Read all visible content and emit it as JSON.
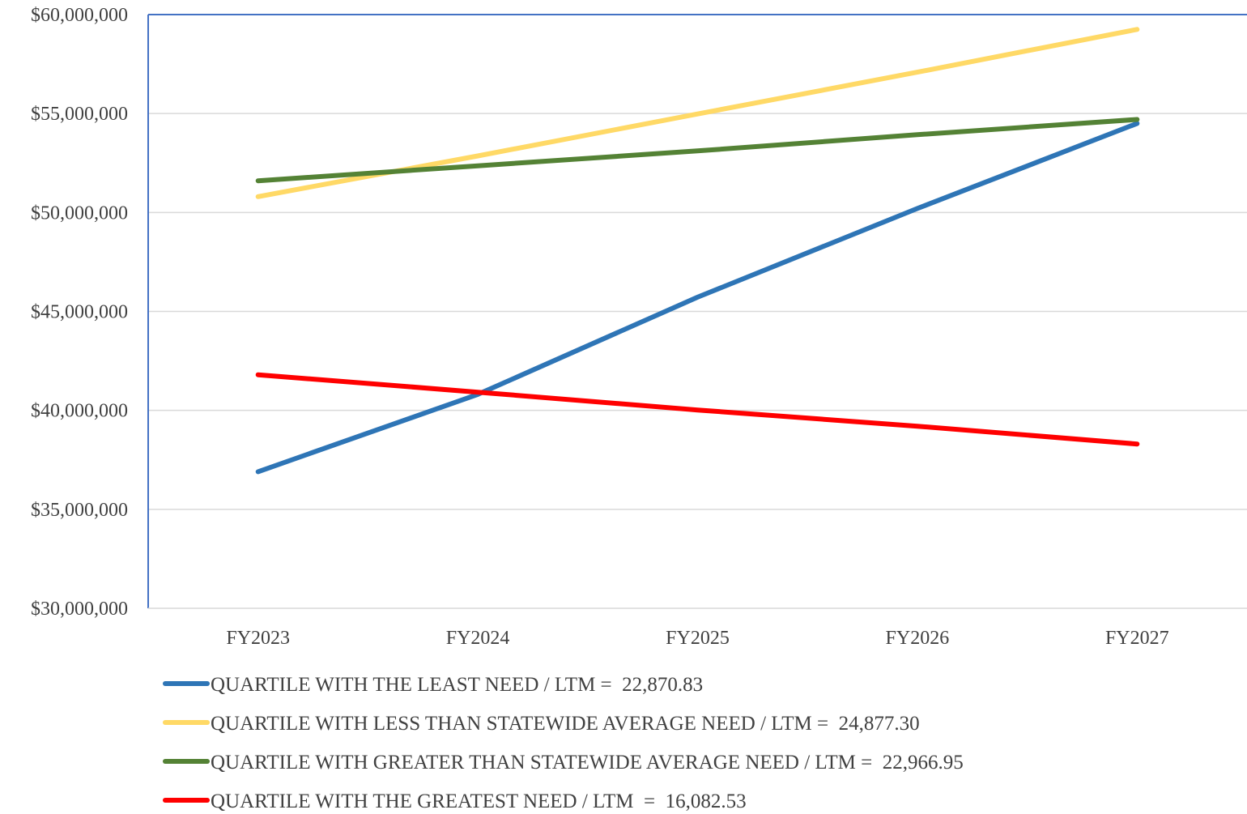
{
  "chart_data": {
    "type": "line",
    "title": "",
    "xlabel": "",
    "ylabel": "",
    "categories": [
      "FY2023",
      "FY2024",
      "FY2025",
      "FY2026",
      "FY2027"
    ],
    "y_ticks": [
      30000000,
      35000000,
      40000000,
      45000000,
      50000000,
      55000000,
      60000000
    ],
    "y_tick_labels": [
      "$30,000,000",
      "$35,000,000",
      "$40,000,000",
      "$45,000,000",
      "$50,000,000",
      "$55,000,000",
      "$60,000,000"
    ],
    "ylim": [
      30000000,
      60000000
    ],
    "grid": true,
    "legend_position": "bottom",
    "series": [
      {
        "name": "QUARTILE WITH THE LEAST NEED / LTM =  22,870.83",
        "color": "#2E75B6",
        "values": [
          36900000,
          40810000,
          45720000,
          50200000,
          54500000
        ]
      },
      {
        "name": "QUARTILE WITH LESS THAN STATEWIDE AVERAGE NEED / LTM =  24,877.30",
        "color": "#FFD966",
        "values": [
          50800000,
          52860000,
          54980000,
          57090000,
          59250000
        ]
      },
      {
        "name": "QUARTILE WITH GREATER THAN STATEWIDE AVERAGE NEED / LTM =  22,966.95",
        "color": "#548235",
        "values": [
          51600000,
          52360000,
          53110000,
          53930000,
          54700000
        ]
      },
      {
        "name": "QUARTILE WITH THE GREATEST NEED / LTM  =  16,082.53",
        "color": "#FF0000",
        "values": [
          41800000,
          40920000,
          40020000,
          39200000,
          38300000
        ]
      }
    ]
  }
}
